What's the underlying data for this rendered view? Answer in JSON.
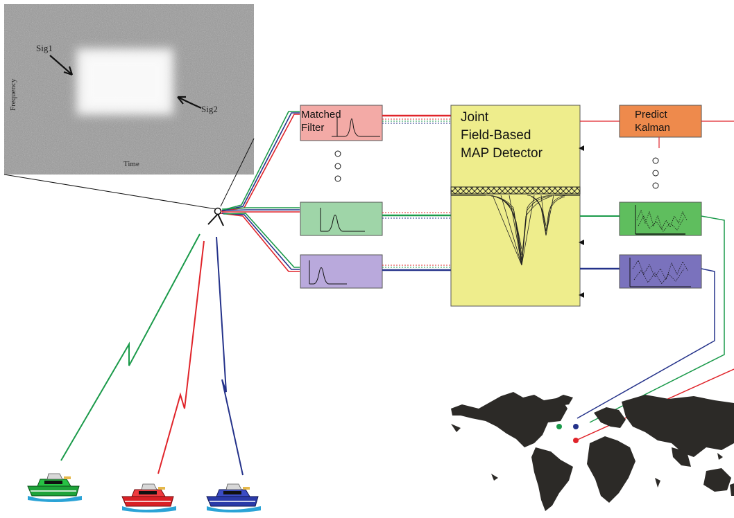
{
  "spectrogram": {
    "sig1_label": "Sig1",
    "sig2_label": "Sig2",
    "x_axis_label": "Time",
    "y_axis_label": "Frequency"
  },
  "blocks": {
    "matched_filter": {
      "line1": "Matched",
      "line2": "Filter"
    },
    "detector": {
      "line1": "Joint",
      "line2": "Field-Based",
      "line3": "MAP Detector"
    },
    "kalman": {
      "line1": "Predict",
      "line2": "Kalman"
    }
  },
  "colors": {
    "green_channel": "#1a9a4a",
    "red_channel": "#e0242a",
    "blue_channel": "#24328a",
    "matched_filter_fill": "#f3aaa6",
    "filter2_fill": "#9fd5a8",
    "filter3_fill": "#b9a9dc",
    "detector_fill": "#eeed8c",
    "kalman_fill": "#ee8a4c",
    "tracker2_fill": "#5fbe5e",
    "tracker3_fill": "#7a72bd",
    "world_map_fill": "#2c2a27"
  }
}
